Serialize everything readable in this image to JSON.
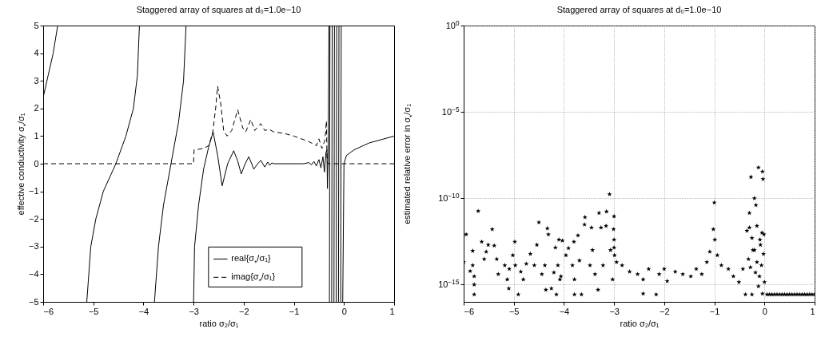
{
  "chart_data": [
    {
      "type": "line",
      "title": "Staggered array of squares at d₀=1.0e−10",
      "xlabel": "ratio σ₂/σ₁",
      "ylabel": "effective conductivity σ$_{*}$/σ₁",
      "xlim": [
        -6,
        1
      ],
      "ylim": [
        -5,
        5
      ],
      "xticks": [
        -6,
        -5,
        -4,
        -3,
        -2,
        -1,
        0,
        1
      ],
      "yticks": [
        -5,
        -4,
        -3,
        -2,
        -1,
        0,
        1,
        2,
        3,
        4,
        5
      ],
      "legend": "bottom",
      "series": [
        {
          "name": "real{σ$_{*}$/σ₁}",
          "color": "#000000",
          "line_style": "solid",
          "x": [
            -6,
            -5.9,
            -5.8,
            -5.71,
            -5.4,
            -5.13,
            -5.05,
            -4.95,
            -4.8,
            -4.55,
            -4.35,
            -4.2,
            -4.12,
            -4.08,
            -3.9,
            -3.78,
            -3.7,
            -3.6,
            -3.45,
            -3.3,
            -3.2,
            -3.15,
            -3.08,
            -3.0,
            -2.98,
            -2.9,
            -2.8,
            -2.7,
            -2.61,
            -2.52,
            -2.43,
            -2.32,
            -2.2,
            -2.12,
            -2.05,
            -1.97,
            -1.9,
            -1.84,
            -1.8,
            -1.72,
            -1.66,
            -1.62,
            -1.58,
            -1.52,
            -1.48,
            -1.44,
            -1.4,
            -0.8,
            -0.7,
            -0.65,
            -0.6,
            -0.55,
            -0.5,
            -0.46,
            -0.42,
            -0.39,
            -0.36,
            -0.34,
            -0.33,
            -0.315,
            -0.3,
            -0.297,
            -0.29,
            -0.28,
            -0.26,
            -0.245,
            -0.235,
            -0.215,
            -0.2,
            -0.19,
            -0.17,
            -0.155,
            -0.145,
            -0.125,
            -0.11,
            -0.1,
            -0.08,
            -0.065,
            -0.055,
            -0.04,
            -0.025,
            0,
            0.05,
            0.2,
            0.5,
            1
          ],
          "values": [
            2.4,
            3.2,
            4.0,
            5,
            null,
            -5,
            -3,
            -2,
            -1,
            0,
            1,
            2,
            3.2,
            5,
            null,
            -5,
            -3,
            -1.5,
            0,
            1.5,
            3,
            5,
            null,
            -5,
            -3,
            -1.5,
            -0.2,
            0.6,
            1.15,
            0.3,
            -0.8,
            0,
            0.47,
            0.1,
            -0.37,
            0,
            0.25,
            0,
            -0.2,
            0,
            0.12,
            0,
            -0.12,
            0.06,
            -0.06,
            0.03,
            0,
            0,
            0.04,
            -0.04,
            0.08,
            -0.08,
            0.15,
            -0.15,
            0.25,
            -0.3,
            0.4,
            0.5,
            -0.9,
            0.3,
            5,
            null,
            -5,
            5,
            null,
            -5,
            5,
            null,
            -5,
            5,
            null,
            -5,
            5,
            null,
            -5,
            5,
            null,
            -5,
            5,
            null,
            -5,
            0,
            0.3,
            0.5,
            0.75,
            1
          ]
        },
        {
          "name": "imag{σ$_{*}$/σ₁}",
          "color": "#000000",
          "line_style": "dashed",
          "x": [
            -6,
            -3.0,
            -2.99,
            -2.8,
            -2.7,
            -2.62,
            -2.56,
            -2.52,
            -2.46,
            -2.4,
            -2.33,
            -2.24,
            -2.12,
            -2.02,
            -1.96,
            -1.86,
            -1.78,
            -1.66,
            -1.58,
            -1.5,
            -1.4,
            -1.2,
            -1.0,
            -0.7,
            -0.55,
            -0.5,
            -0.44,
            -0.38,
            -0.35,
            -0.34,
            -0.32,
            1
          ],
          "values": [
            0,
            0,
            0.5,
            0.55,
            0.65,
            1.1,
            2.0,
            2.8,
            2.2,
            1.2,
            1.0,
            1.2,
            1.95,
            1.3,
            1.15,
            1.6,
            1.2,
            1.45,
            1.2,
            1.25,
            1.15,
            1.1,
            1.0,
            0.8,
            0.65,
            0.9,
            0.55,
            0.85,
            1.55,
            0.3,
            0,
            0
          ]
        }
      ]
    },
    {
      "type": "scatter",
      "title": "Staggered array of squares at d₀=1.0e−10",
      "xlabel": "ratio σ₂/σ₁",
      "ylabel": "estimated relative error in σ$_{*}$/σ₁",
      "xlim": [
        -6,
        1
      ],
      "ylim": [
        1e-16,
        1
      ],
      "xticks": [
        -6,
        -5,
        -4,
        -3,
        -2,
        -1,
        0,
        1
      ],
      "yticks": [
        {
          "value": 1e-15,
          "label": "10$^{−15}$"
        },
        {
          "value": 1e-10,
          "label": "10$^{−10}$"
        },
        {
          "value": 1e-05,
          "label": "10$^{−5}$"
        },
        {
          "value": 1,
          "label": "10$^{0}$"
        }
      ],
      "log": "y",
      "grid": true,
      "marker": "star",
      "series": [
        {
          "color": "#000000",
          "x": [
            -6.0,
            -5.95,
            -5.82,
            -5.82,
            -5.79,
            -5.79,
            -5.79,
            -5.87,
            -5.71,
            -5.64,
            -5.59,
            -5.55,
            -5.51,
            -5.43,
            -5.39,
            -5.34,
            -5.31,
            -5.18,
            -5.13,
            -5.1,
            -5.09,
            -5.02,
            -4.98,
            -4.91,
            -4.97,
            -4.86,
            -4.81,
            -4.75,
            -4.67,
            -4.59,
            -4.54,
            -4.5,
            -4.44,
            -4.38,
            -4.36,
            -4.33,
            -4.31,
            -4.25,
            -4.2,
            -4.17,
            -4.15,
            -4.12,
            -4.1,
            -4.08,
            -4.06,
            -4.03,
            -3.96,
            -3.91,
            -3.83,
            -3.8,
            -3.79,
            -3.79,
            -3.72,
            -3.69,
            -3.65,
            -3.59,
            -3.58,
            -3.48,
            -3.45,
            -3.43,
            -3.38,
            -3.32,
            -3.3,
            -3.26,
            -3.22,
            -3.16,
            -3.15,
            -3.09,
            -3.07,
            -3.03,
            -3.0,
            -3.01,
            -3.0,
            -3.0,
            -2.99,
            -2.95,
            -2.84,
            -2.69,
            -2.53,
            -2.42,
            -2.42,
            -2.31,
            -2.16,
            -2.1,
            -2.0,
            -1.94,
            -1.78,
            -1.63,
            -1.47,
            -1.36,
            -1.25,
            -1.15,
            -1.09,
            -1.02,
            -1.0,
            -0.99,
            -0.94,
            -0.86,
            -0.72,
            -0.62,
            -0.51,
            -0.43,
            -0.38,
            -0.35,
            -0.3,
            -0.27,
            -0.25,
            -0.23,
            -0.2,
            -0.17,
            -0.15,
            -0.12,
            -0.09,
            -0.06,
            -0.04,
            -0.03,
            -0.01,
            0,
            -0.04,
            -0.3,
            -0.25,
            -0.2,
            -0.15,
            -0.1,
            -0.05,
            -0.32,
            -0.18,
            -0.08,
            -0.02,
            -0.28,
            -0.12,
            0.05,
            0.1,
            0.15,
            0.2,
            0.25,
            0.3,
            0.35,
            0.4,
            0.45,
            0.5,
            0.55,
            0.6,
            0.65,
            0.7,
            0.75,
            0.8,
            0.85,
            0.9,
            0.95,
            1.0
          ],
          "values": [
            2e-14,
            8e-13,
            9e-14,
            1.3e-14,
            3e-15,
            1e-15,
            2.7e-16,
            6e-15,
            1.8e-11,
            3e-13,
            3e-14,
            8e-14,
            2e-13,
            1.6e-12,
            1.8e-13,
            3e-14,
            4e-15,
            1.3e-14,
            2e-15,
            6e-16,
            8e-15,
            5e-14,
            3e-13,
            2.7e-16,
            1.3e-14,
            5.6e-15,
            2e-15,
            1.6e-14,
            6e-14,
            1.3e-14,
            2e-13,
            4e-12,
            4e-15,
            1.3e-14,
            5e-16,
            1.8e-12,
            8e-13,
            6e-16,
            5e-15,
            1.4e-13,
            2.7e-16,
            1.3e-14,
            4e-13,
            2e-15,
            3e-15,
            3.5e-13,
            5e-14,
            1.3e-13,
            1.3e-14,
            3e-13,
            2e-15,
            2.7e-16,
            7e-13,
            2.5e-14,
            2.7e-16,
            3e-12,
            8e-12,
            1.3e-14,
            2e-12,
            1e-13,
            4e-15,
            5e-16,
            1.4e-11,
            2e-12,
            1.3e-14,
            2.5e-12,
            1.7e-11,
            1.7e-10,
            1e-13,
            2e-15,
            9e-12,
            1.6e-12,
            4e-13,
            1.4e-13,
            5e-14,
            2e-14,
            1.3e-14,
            5.6e-15,
            4e-15,
            2e-15,
            3e-16,
            8e-15,
            2.7e-16,
            4e-15,
            8e-15,
            1.6e-15,
            5.6e-15,
            4e-15,
            3e-15,
            8e-15,
            4e-15,
            2e-14,
            8e-14,
            1.6e-12,
            5.6e-11,
            4e-13,
            5e-14,
            1.3e-14,
            8e-15,
            3e-15,
            1.4e-15,
            8e-15,
            2.7e-16,
            1.3e-12,
            1.4e-11,
            1.7e-09,
            2.7e-16,
            1e-13,
            1e-10,
            4e-11,
            2.5e-12,
            6e-09,
            4e-13,
            1.3e-14,
            3.5e-09,
            1.3e-09,
            8e-13,
            1.4e-15,
            3e-16,
            2e-12,
            5e-13,
            1e-13,
            2e-14,
            3e-15,
            1e-12,
            3e-14,
            5e-15,
            2e-13,
            6e-14,
            1e-14,
            8e-16,
            2.7e-16,
            2.7e-16,
            2.7e-16,
            2.7e-16,
            2.7e-16,
            2.7e-16,
            2.7e-16,
            2.7e-16,
            2.7e-16,
            2.7e-16,
            2.7e-16,
            2.7e-16,
            2.7e-16,
            2.7e-16,
            2.7e-16,
            2.7e-16,
            2.7e-16,
            2.7e-16,
            2.7e-16,
            2.7e-16
          ]
        }
      ]
    }
  ]
}
